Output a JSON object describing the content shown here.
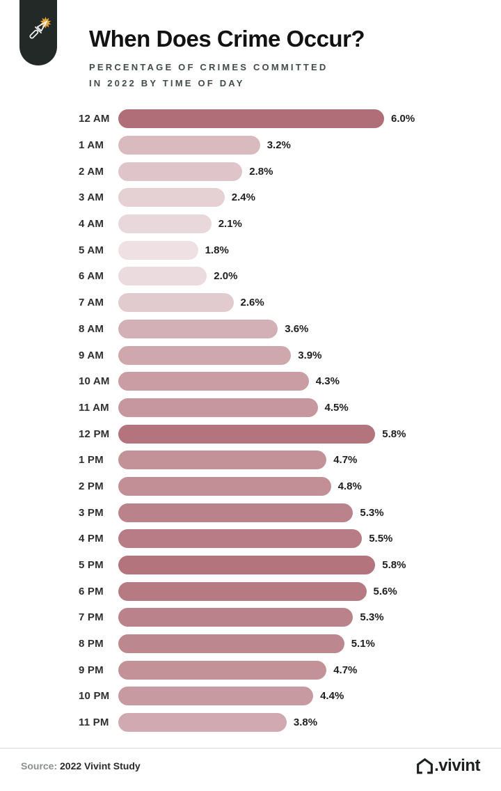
{
  "header": {
    "title": "When Does Crime Occur?",
    "subtitle_line1": "PERCENTAGE OF CRIMES COMMITTED",
    "subtitle_line2": "IN 2022 BY TIME OF DAY",
    "badge_bg": "#222926",
    "knife_stroke_color": "#f5f5f5",
    "spark_color": "#e9a63b"
  },
  "chart_data": {
    "type": "bar",
    "orientation": "horizontal",
    "title": "When Does Crime Occur?",
    "subtitle": "PERCENTAGE OF CRIMES COMMITTED IN 2022 BY TIME OF DAY",
    "xlabel": "",
    "ylabel": "",
    "unit": "%",
    "xlim": [
      0,
      6.0
    ],
    "grid": false,
    "legend_position": "none",
    "categories": [
      "12 AM",
      "1 AM",
      "2 AM",
      "3 AM",
      "4 AM",
      "5 AM",
      "6 AM",
      "7 AM",
      "8 AM",
      "9 AM",
      "10 AM",
      "11 AM",
      "12 PM",
      "1 PM",
      "2 PM",
      "3 PM",
      "4 PM",
      "5 PM",
      "6 PM",
      "7 PM",
      "8 PM",
      "9 PM",
      "10 PM",
      "11 PM"
    ],
    "values": [
      6.0,
      3.2,
      2.8,
      2.4,
      2.1,
      1.8,
      2.0,
      2.6,
      3.6,
      3.9,
      4.3,
      4.5,
      5.8,
      4.7,
      4.8,
      5.3,
      5.5,
      5.8,
      5.6,
      5.3,
      5.1,
      4.7,
      4.4,
      3.8
    ],
    "value_labels": [
      "6.0%",
      "3.2%",
      "2.8%",
      "2.4%",
      "2.1%",
      "1.8%",
      "2.0%",
      "2.6%",
      "3.6%",
      "3.9%",
      "4.3%",
      "4.5%",
      "5.8%",
      "4.7%",
      "4.8%",
      "5.3%",
      "5.5%",
      "5.8%",
      "5.6%",
      "5.3%",
      "5.1%",
      "4.7%",
      "4.4%",
      "3.8%"
    ],
    "bar_colors": [
      "#b06f78",
      "#d9babf",
      "#dfc5c9",
      "#e5d0d4",
      "#e9d8db",
      "#eee0e3",
      "#ebdbde",
      "#e2cbcf",
      "#d3b0b5",
      "#cfa8ae",
      "#c99da3",
      "#c6979e",
      "#b3747d",
      "#c39299",
      "#c28f96",
      "#ba828a",
      "#b77c85",
      "#b3747d",
      "#b67a82",
      "#ba828a",
      "#bd878f",
      "#c39299",
      "#c79aa1",
      "#d0aab0"
    ]
  },
  "footer": {
    "source_label": "Source:",
    "source_text": " 2022 Vivint Study",
    "brand": ".vivint"
  }
}
